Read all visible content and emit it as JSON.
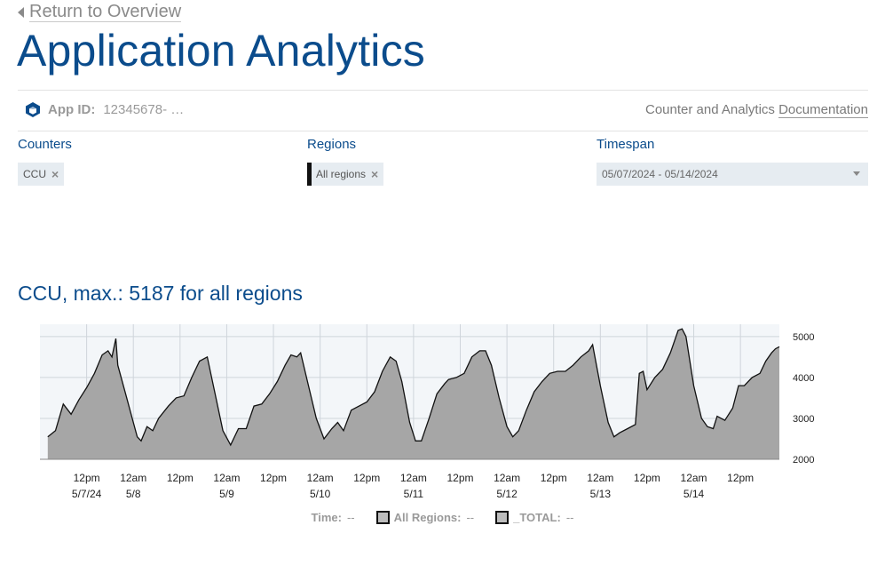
{
  "nav": {
    "back_label": "Return to Overview"
  },
  "page": {
    "title": "Application Analytics"
  },
  "app": {
    "id_label": "App ID:",
    "id_value": "12345678- …",
    "doc_prefix": "Counter and Analytics ",
    "doc_link": "Documentation"
  },
  "filters": {
    "counters_label": "Counters",
    "counters_chip": "CCU",
    "regions_label": "Regions",
    "regions_chip": "All regions",
    "timespan_label": "Timespan",
    "timespan_value": "05/07/2024 - 05/14/2024"
  },
  "chart": {
    "title": "CCU, max.: 5187 for all regions"
  },
  "legend": {
    "time_label": "Time:",
    "time_value": "--",
    "all_regions_label": "All Regions:",
    "all_regions_value": "--",
    "total_label": "_TOTAL:",
    "total_value": "--"
  },
  "colors": {
    "accent": "#0b4c8c",
    "area_fill": "#a6a6a6",
    "plot_bg": "#f3f6f9",
    "line": "#111111"
  },
  "chart_data": {
    "type": "area",
    "title": "CCU, max.: 5187 for all regions",
    "ylim": [
      2000,
      5300
    ],
    "yticks": [
      2000,
      3000,
      4000,
      5000
    ],
    "grid": true,
    "xticks": [
      {
        "t": 12,
        "top": "12pm",
        "bottom": "5/7/24"
      },
      {
        "t": 24,
        "top": "12am",
        "bottom": "5/8"
      },
      {
        "t": 36,
        "top": "12pm",
        "bottom": ""
      },
      {
        "t": 48,
        "top": "12am",
        "bottom": "5/9"
      },
      {
        "t": 60,
        "top": "12pm",
        "bottom": ""
      },
      {
        "t": 72,
        "top": "12am",
        "bottom": "5/10"
      },
      {
        "t": 84,
        "top": "12pm",
        "bottom": ""
      },
      {
        "t": 96,
        "top": "12am",
        "bottom": "5/11"
      },
      {
        "t": 108,
        "top": "12pm",
        "bottom": ""
      },
      {
        "t": 120,
        "top": "12am",
        "bottom": "5/12"
      },
      {
        "t": 132,
        "top": "12pm",
        "bottom": ""
      },
      {
        "t": 144,
        "top": "12am",
        "bottom": "5/13"
      },
      {
        "t": 156,
        "top": "12pm",
        "bottom": ""
      },
      {
        "t": 168,
        "top": "12am",
        "bottom": "5/14"
      },
      {
        "t": 180,
        "top": "12pm",
        "bottom": ""
      }
    ],
    "series": [
      {
        "name": "All Regions",
        "values": [
          [
            2,
            2550
          ],
          [
            4,
            2700
          ],
          [
            6,
            3350
          ],
          [
            8,
            3100
          ],
          [
            10,
            3450
          ],
          [
            12,
            3750
          ],
          [
            14,
            4100
          ],
          [
            16,
            4550
          ],
          [
            17.5,
            4650
          ],
          [
            18.5,
            4500
          ],
          [
            19.5,
            4950
          ],
          [
            20,
            4300
          ],
          [
            22,
            3600
          ],
          [
            24,
            2900
          ],
          [
            25,
            2550
          ],
          [
            26,
            2450
          ],
          [
            27.5,
            2800
          ],
          [
            29,
            2700
          ],
          [
            30.5,
            3000
          ],
          [
            33,
            3300
          ],
          [
            35,
            3500
          ],
          [
            37,
            3550
          ],
          [
            39,
            4000
          ],
          [
            41,
            4400
          ],
          [
            43,
            4500
          ],
          [
            45,
            3600
          ],
          [
            47,
            2700
          ],
          [
            49,
            2350
          ],
          [
            51,
            2750
          ],
          [
            53,
            2750
          ],
          [
            55,
            3300
          ],
          [
            57,
            3350
          ],
          [
            59,
            3600
          ],
          [
            61,
            3900
          ],
          [
            63,
            4300
          ],
          [
            64.5,
            4550
          ],
          [
            66,
            4500
          ],
          [
            67,
            4600
          ],
          [
            69,
            3800
          ],
          [
            71,
            3000
          ],
          [
            73,
            2500
          ],
          [
            75,
            2750
          ],
          [
            76.5,
            2900
          ],
          [
            78,
            2700
          ],
          [
            80,
            3200
          ],
          [
            82,
            3300
          ],
          [
            84,
            3400
          ],
          [
            86,
            3650
          ],
          [
            88,
            4150
          ],
          [
            90,
            4500
          ],
          [
            91.5,
            4400
          ],
          [
            93,
            3900
          ],
          [
            95,
            2900
          ],
          [
            96.5,
            2450
          ],
          [
            98,
            2450
          ],
          [
            100,
            3000
          ],
          [
            102,
            3600
          ],
          [
            104,
            3850
          ],
          [
            105,
            3950
          ],
          [
            107,
            4000
          ],
          [
            109,
            4100
          ],
          [
            111,
            4500
          ],
          [
            113,
            4650
          ],
          [
            114.5,
            4650
          ],
          [
            116,
            4300
          ],
          [
            118,
            3500
          ],
          [
            120,
            2800
          ],
          [
            121.5,
            2550
          ],
          [
            123,
            2700
          ],
          [
            125,
            3200
          ],
          [
            127,
            3650
          ],
          [
            129,
            3900
          ],
          [
            131,
            4100
          ],
          [
            133,
            4150
          ],
          [
            135,
            4150
          ],
          [
            137,
            4300
          ],
          [
            139,
            4500
          ],
          [
            141,
            4650
          ],
          [
            142,
            4800
          ],
          [
            144,
            3800
          ],
          [
            146,
            2900
          ],
          [
            147.5,
            2550
          ],
          [
            149,
            2650
          ],
          [
            151,
            2750
          ],
          [
            153,
            2850
          ],
          [
            154,
            4100
          ],
          [
            155,
            4150
          ],
          [
            156,
            3700
          ],
          [
            158,
            4000
          ],
          [
            160,
            4200
          ],
          [
            162,
            4600
          ],
          [
            164,
            5150
          ],
          [
            165,
            5187
          ],
          [
            166,
            5000
          ],
          [
            168,
            3800
          ],
          [
            170,
            3000
          ],
          [
            171.5,
            2800
          ],
          [
            173,
            2750
          ],
          [
            174,
            3050
          ],
          [
            176,
            2950
          ],
          [
            178,
            3250
          ],
          [
            179.5,
            3800
          ],
          [
            181,
            3800
          ],
          [
            183,
            4000
          ],
          [
            185,
            4100
          ],
          [
            186.5,
            4400
          ],
          [
            188,
            4600
          ],
          [
            189,
            4700
          ],
          [
            190,
            4750
          ]
        ]
      }
    ],
    "legend": [
      "Time:",
      "All Regions:",
      "_TOTAL:"
    ]
  }
}
